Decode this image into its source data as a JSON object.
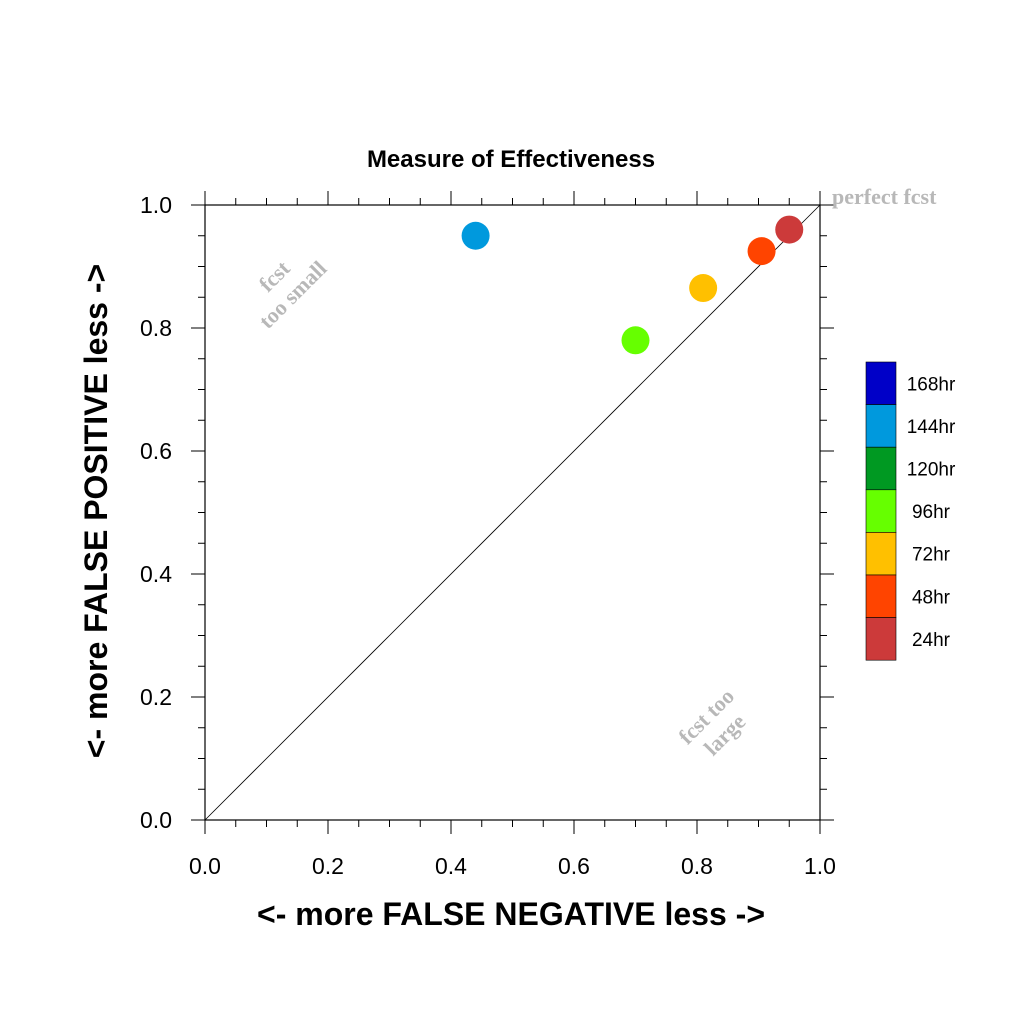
{
  "chart_data": {
    "type": "scatter",
    "title": "Measure of Effectiveness",
    "xlabel": "<- more   FALSE NEGATIVE   less ->",
    "ylabel": "<- more   FALSE POSITIVE   less ->",
    "xlim": [
      0,
      1
    ],
    "ylim": [
      0,
      1
    ],
    "xticks": [
      "0.0",
      "0.2",
      "0.4",
      "0.6",
      "0.8",
      "1.0"
    ],
    "yticks": [
      "0.0",
      "0.2",
      "0.4",
      "0.6",
      "0.8",
      "1.0"
    ],
    "grid": false,
    "reference_line": "diagonal y = x",
    "annotations": {
      "perfect": "perfect fcst",
      "too_small_line1": "fcst",
      "too_small_line2": "too small",
      "too_large_line1": "fcst too",
      "too_large_line2": "large"
    },
    "legend_position": "right",
    "series": [
      {
        "name": "168hr",
        "color": "#0000c8",
        "points": []
      },
      {
        "name": "144hr",
        "color": "#0099dd",
        "points": [
          {
            "x": 0.44,
            "y": 0.95
          }
        ]
      },
      {
        "name": "120hr",
        "color": "#009922",
        "points": []
      },
      {
        "name": "96hr",
        "color": "#66ff00",
        "points": [
          {
            "x": 0.7,
            "y": 0.78
          }
        ]
      },
      {
        "name": "72hr",
        "color": "#ffc000",
        "points": [
          {
            "x": 0.81,
            "y": 0.865
          }
        ]
      },
      {
        "name": "48hr",
        "color": "#ff4400",
        "points": [
          {
            "x": 0.905,
            "y": 0.925
          }
        ]
      },
      {
        "name": "24hr",
        "color": "#cc3a3a",
        "points": [
          {
            "x": 0.95,
            "y": 0.96
          }
        ]
      }
    ]
  }
}
